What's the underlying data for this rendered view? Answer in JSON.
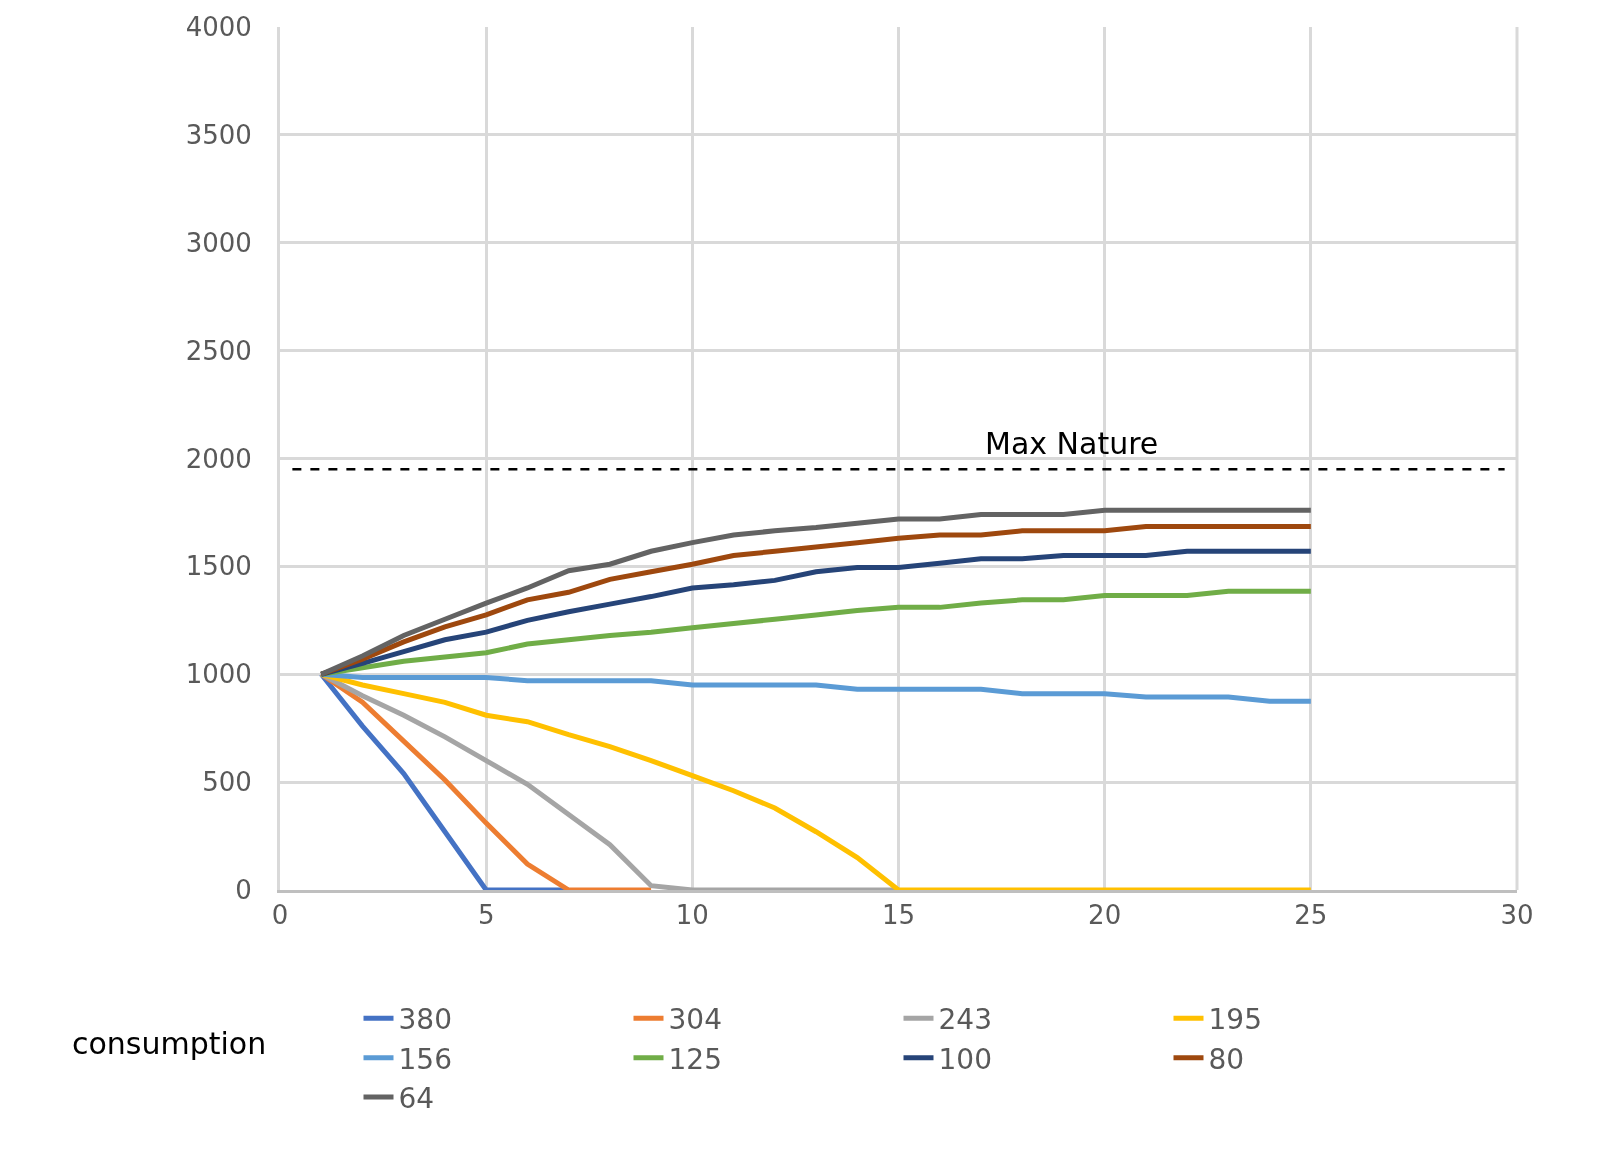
{
  "chart_data": {
    "type": "line",
    "x": [
      1,
      2,
      3,
      4,
      5,
      6,
      7,
      8,
      9,
      10,
      11,
      12,
      13,
      14,
      15,
      16,
      17,
      18,
      19,
      20,
      21,
      22,
      23,
      24,
      25
    ],
    "series": [
      {
        "name": "380",
        "color": "#4472c4",
        "values": [
          1000,
          760,
          540,
          270,
          0,
          0,
          0,
          null,
          null,
          null,
          null,
          null,
          null,
          null,
          null,
          null,
          null,
          null,
          null,
          null,
          null,
          null,
          null,
          null,
          null
        ]
      },
      {
        "name": "304",
        "color": "#ed7d31",
        "values": [
          1000,
          870,
          690,
          510,
          310,
          120,
          0,
          0,
          0,
          null,
          null,
          null,
          null,
          null,
          null,
          null,
          null,
          null,
          null,
          null,
          null,
          null,
          null,
          null,
          null
        ]
      },
      {
        "name": "243",
        "color": "#a5a5a5",
        "values": [
          1000,
          900,
          810,
          710,
          600,
          490,
          350,
          210,
          20,
          0,
          0,
          0,
          0,
          0,
          0,
          null,
          null,
          null,
          null,
          null,
          null,
          null,
          null,
          null,
          null
        ]
      },
      {
        "name": "195",
        "color": "#ffc000",
        "values": [
          1000,
          950,
          910,
          870,
          810,
          780,
          720,
          665,
          600,
          530,
          460,
          380,
          270,
          150,
          0,
          0,
          0,
          0,
          0,
          0,
          0,
          0,
          0,
          0,
          0
        ]
      },
      {
        "name": "156",
        "color": "#5b9bd5",
        "values": [
          1000,
          985,
          985,
          985,
          985,
          970,
          970,
          970,
          970,
          950,
          950,
          950,
          950,
          930,
          930,
          930,
          930,
          910,
          910,
          910,
          895,
          895,
          895,
          875,
          875
        ]
      },
      {
        "name": "125",
        "color": "#70ad47",
        "values": [
          1000,
          1030,
          1060,
          1080,
          1100,
          1140,
          1160,
          1180,
          1195,
          1215,
          1235,
          1255,
          1275,
          1295,
          1310,
          1310,
          1330,
          1345,
          1345,
          1365,
          1365,
          1365,
          1385,
          1385,
          1385
        ]
      },
      {
        "name": "100",
        "color": "#264478",
        "values": [
          1000,
          1050,
          1105,
          1160,
          1195,
          1250,
          1290,
          1325,
          1360,
          1400,
          1415,
          1435,
          1475,
          1495,
          1495,
          1515,
          1535,
          1535,
          1550,
          1550,
          1550,
          1570,
          1570,
          1570,
          1570
        ]
      },
      {
        "name": "80",
        "color": "#9e480e",
        "values": [
          1000,
          1070,
          1150,
          1220,
          1275,
          1345,
          1380,
          1440,
          1475,
          1510,
          1550,
          1570,
          1590,
          1610,
          1630,
          1645,
          1645,
          1665,
          1665,
          1665,
          1685,
          1685,
          1685,
          1685,
          1685
        ]
      },
      {
        "name": "64",
        "color": "#636363",
        "values": [
          1000,
          1085,
          1180,
          1255,
          1330,
          1400,
          1480,
          1510,
          1570,
          1610,
          1645,
          1665,
          1680,
          1700,
          1720,
          1720,
          1740,
          1740,
          1740,
          1760,
          1760,
          1760,
          1760,
          1760,
          1760
        ]
      }
    ],
    "xlim": [
      0,
      30
    ],
    "xticks": [
      0,
      5,
      10,
      15,
      20,
      25,
      30
    ],
    "ylim": [
      0,
      4000
    ],
    "yticks": [
      0,
      500,
      1000,
      1500,
      2000,
      2500,
      3000,
      3500,
      4000
    ],
    "grid": true,
    "legend": "bottom",
    "marker": "none",
    "line_style": "solid",
    "ref_lines": [
      {
        "axis": "y",
        "value": 1950,
        "label": "Max Nature",
        "color": "#000000",
        "line_style": "dashed"
      }
    ],
    "annotations": [
      "consumption"
    ]
  }
}
